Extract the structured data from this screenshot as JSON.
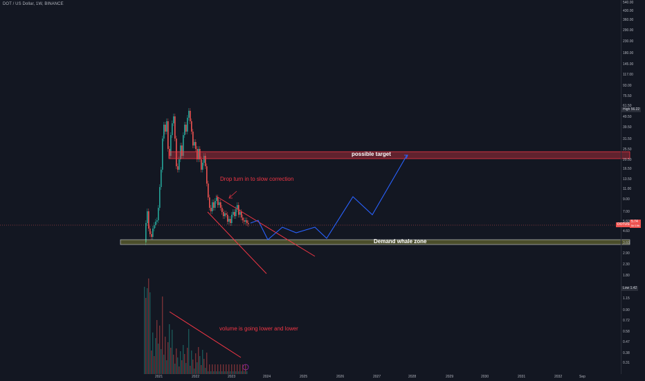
{
  "header": {
    "title": "DOT / US Dollar, 1W, BINANCE"
  },
  "price_axis": {
    "labels": [
      "540.00",
      "430.00",
      "360.00",
      "290.00",
      "230.00",
      "180.00",
      "145.00",
      "117.00",
      "93.00",
      "75.50",
      "61.50",
      "49.50",
      "39.50",
      "31.50",
      "25.50",
      "20.50",
      "16.50",
      "13.50",
      "11.00",
      "9.00",
      "7.00",
      "5.60",
      "4.60",
      "3.60",
      "2.90",
      "2.30",
      "1.80",
      "1.15",
      "0.90",
      "0.72",
      "0.58",
      "0.47",
      "0.38",
      "0.31"
    ],
    "high_label": "High",
    "high_value": "56.22",
    "low_label": "Low",
    "low_value": "1.42",
    "symbol_badge": "DOTUSD",
    "last_price": "5.74",
    "countdown": "5d 19h"
  },
  "time_axis": {
    "labels": [
      "2021",
      "2022",
      "2023",
      "2024",
      "2025",
      "2026",
      "2027",
      "2028",
      "2029",
      "2030",
      "2031",
      "2032",
      "Sep"
    ]
  },
  "annotations": {
    "possible_target": "possible target",
    "demand_zone": "Demand whale zone",
    "drop_text": "Drop turn in to slow correction",
    "volume_text": "volume is going lower and lower"
  },
  "colors": {
    "bg": "#131722",
    "up": "#26a69a",
    "down": "#ef5350",
    "projection": "#2962ff",
    "annotation": "#f23645"
  }
}
